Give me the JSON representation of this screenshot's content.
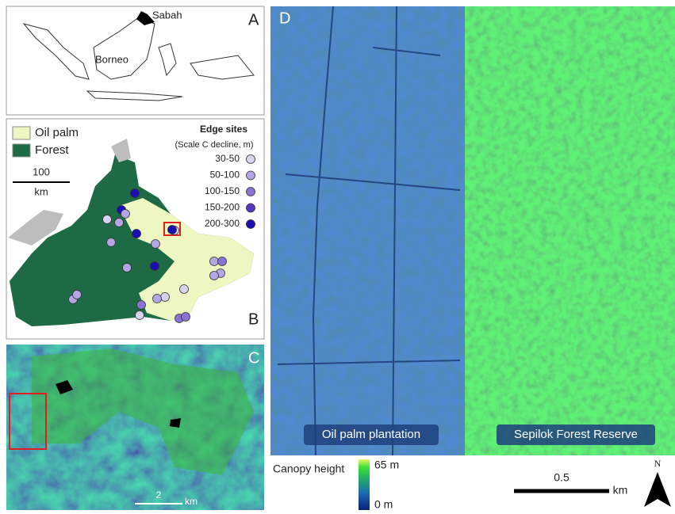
{
  "panel_a": {
    "label": "A",
    "places": [
      "Sabah",
      "Borneo"
    ]
  },
  "panel_b": {
    "label": "B",
    "legend": [
      {
        "name": "Oil palm",
        "color": "#eef6c2"
      },
      {
        "name": "Forest",
        "color": "#1d6a45"
      }
    ],
    "edge_sites": {
      "title": "Edge sites",
      "subtitle": "(Scale C decline, m)",
      "classes": [
        {
          "label": "30-50",
          "color": "#d6d2ef"
        },
        {
          "label": "50-100",
          "color": "#b4a6e6"
        },
        {
          "label": "100-150",
          "color": "#8a72d6"
        },
        {
          "label": "150-200",
          "color": "#5638c0"
        },
        {
          "label": "200-300",
          "color": "#1a0fb5"
        }
      ]
    },
    "scale_bar": {
      "value": "100",
      "unit": "km"
    }
  },
  "panel_c": {
    "label": "C",
    "scale_bar": {
      "value": "2",
      "unit": "km"
    }
  },
  "panel_d": {
    "label": "D",
    "regions": [
      "Oil palm plantation",
      "Sepilok Forest Reserve"
    ],
    "scale_bar": {
      "value": "0.5",
      "unit": "km"
    },
    "north": "N"
  },
  "colorbar": {
    "title": "Canopy height",
    "max": "65 m",
    "min": "0 m"
  }
}
